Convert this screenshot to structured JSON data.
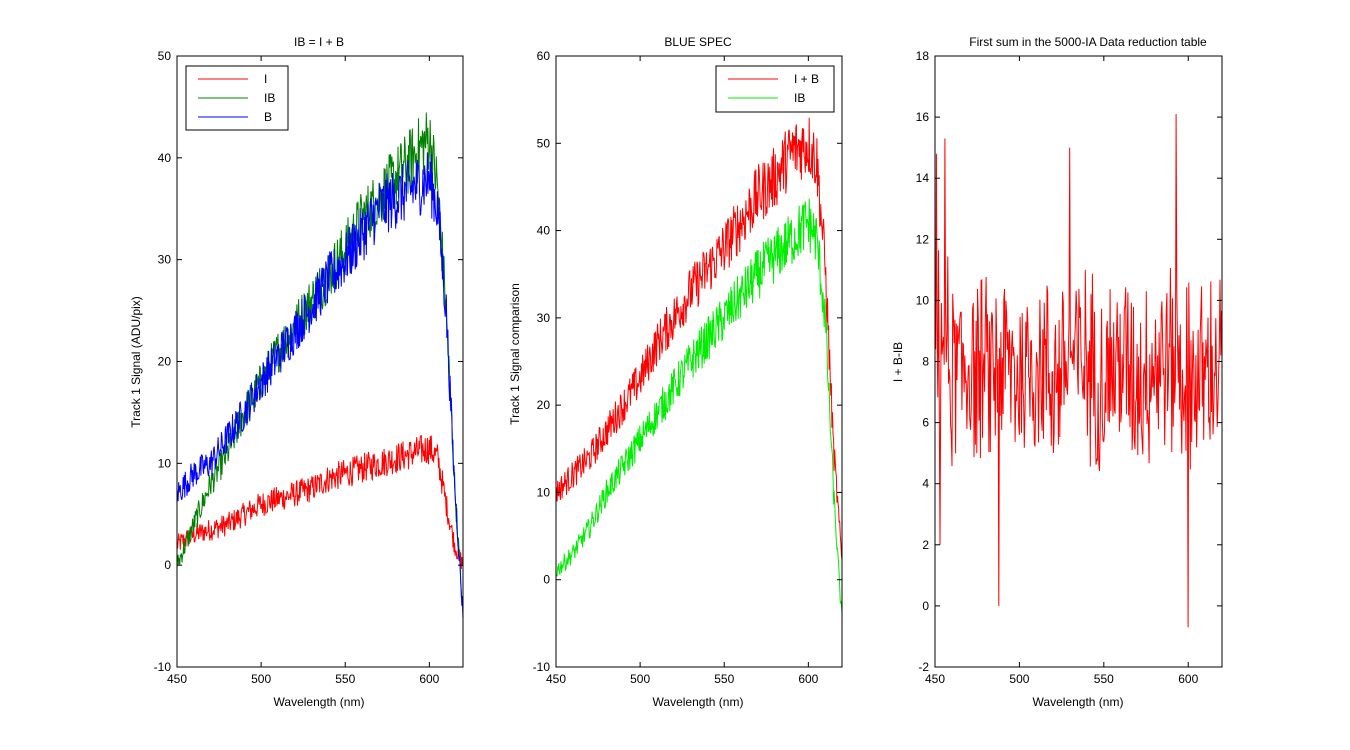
{
  "figure": {
    "background": "#ffffff"
  },
  "chart_data": [
    {
      "type": "line",
      "title": "IB = I + B",
      "xlabel": "Wavelength (nm)",
      "ylabel": "Track 1 Signal (ADU/pix)",
      "xlim": [
        450,
        620
      ],
      "ylim": [
        -10,
        50
      ],
      "xticks": [
        450,
        500,
        550,
        600
      ],
      "yticks": [
        -10,
        0,
        10,
        20,
        30,
        40,
        50
      ],
      "grid": false,
      "legend": "top-left",
      "series": [
        {
          "name": "I",
          "color": "#ff0000",
          "x": [
            450,
            460,
            470,
            480,
            490,
            500,
            510,
            520,
            530,
            540,
            550,
            560,
            570,
            580,
            590,
            600,
            605,
            610,
            615,
            620
          ],
          "y": [
            2,
            3,
            3.5,
            4,
            5,
            6,
            6.5,
            7,
            7.5,
            8.5,
            9,
            9.5,
            10,
            10.5,
            11,
            11.5,
            10.5,
            6,
            2,
            0
          ]
        },
        {
          "name": "IB",
          "color": "#008000",
          "x": [
            450,
            460,
            470,
            480,
            490,
            500,
            510,
            520,
            530,
            540,
            550,
            560,
            570,
            580,
            590,
            600,
            605,
            610,
            615,
            620
          ],
          "y": [
            0,
            4,
            8,
            11,
            15,
            18,
            21,
            23.5,
            26,
            28.5,
            31,
            34,
            36,
            38,
            40,
            42,
            37,
            25,
            8,
            -5
          ]
        },
        {
          "name": "B",
          "color": "#0000ff",
          "x": [
            450,
            460,
            470,
            480,
            490,
            500,
            510,
            520,
            530,
            540,
            550,
            560,
            570,
            580,
            590,
            600,
            605,
            610,
            615,
            620
          ],
          "y": [
            7,
            9,
            10,
            12.5,
            15,
            18,
            20.5,
            23,
            25.5,
            28,
            30,
            32.5,
            35,
            36,
            37,
            38,
            35,
            25,
            8,
            -5
          ]
        }
      ]
    },
    {
      "type": "line",
      "title": "BLUE SPEC",
      "xlabel": "Wavelength (nm)",
      "ylabel": "Track 1 Signal comparison",
      "xlim": [
        450,
        620
      ],
      "ylim": [
        -10,
        60
      ],
      "xticks": [
        450,
        500,
        550,
        600
      ],
      "yticks": [
        -10,
        0,
        10,
        20,
        30,
        40,
        50,
        60
      ],
      "grid": false,
      "legend": "top-right",
      "series": [
        {
          "name": "I + B",
          "color": "#ff0000",
          "x": [
            450,
            460,
            470,
            480,
            490,
            500,
            510,
            520,
            530,
            540,
            550,
            560,
            570,
            580,
            590,
            600,
            605,
            610,
            615,
            620
          ],
          "y": [
            10,
            12,
            14,
            17,
            20,
            23,
            27,
            30,
            33,
            35.5,
            38,
            41,
            44,
            46,
            49,
            50,
            48,
            36,
            15,
            2
          ]
        },
        {
          "name": "IB",
          "color": "#00ee00",
          "x": [
            450,
            460,
            470,
            480,
            490,
            500,
            510,
            520,
            530,
            540,
            550,
            560,
            570,
            580,
            590,
            600,
            605,
            610,
            615,
            620
          ],
          "y": [
            1,
            3,
            6,
            10,
            13,
            16,
            19,
            22,
            25,
            27.5,
            30,
            32.5,
            35,
            37,
            39,
            41,
            39,
            30,
            10,
            -5
          ]
        }
      ]
    },
    {
      "type": "line",
      "title": "First sum in the 5000-IA Data reduction table",
      "xlabel": "Wavelength (nm)",
      "ylabel": "I + B-IB",
      "xlim": [
        450,
        620
      ],
      "ylim": [
        -2,
        18
      ],
      "xticks": [
        450,
        500,
        550,
        600
      ],
      "yticks": [
        -2,
        0,
        2,
        4,
        6,
        8,
        10,
        12,
        14,
        16,
        18
      ],
      "grid": false,
      "legend": "none",
      "series": [
        {
          "color": "#ff0000",
          "x": [
            450,
            455,
            460,
            470,
            480,
            490,
            500,
            510,
            520,
            530,
            540,
            550,
            560,
            570,
            580,
            590,
            600,
            610,
            620
          ],
          "y": [
            8,
            9,
            7.5,
            8,
            7.5,
            8,
            7.5,
            8,
            7.5,
            8,
            8,
            7.5,
            8,
            7.5,
            8,
            8,
            7.5,
            7.5,
            8
          ],
          "noise_amplitude": 3.2,
          "extremes": [
            [
              451,
              14.8
            ],
            [
              453,
              2
            ],
            [
              456,
              15.3
            ],
            [
              488,
              0
            ],
            [
              530,
              15
            ],
            [
              593,
              16.1
            ],
            [
              600,
              -0.7
            ]
          ]
        }
      ]
    }
  ]
}
